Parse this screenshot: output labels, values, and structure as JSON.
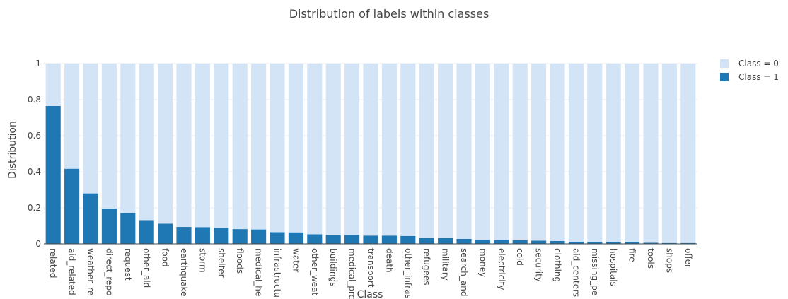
{
  "chart_data": {
    "type": "bar",
    "stacked": true,
    "title": "Distribution of labels within classes",
    "xlabel": "Class",
    "ylabel": "Distribution",
    "ylim": [
      0,
      1
    ],
    "yticks": [
      0,
      0.2,
      0.4,
      0.6,
      0.8,
      1
    ],
    "ytick_labels": [
      "0",
      "0.2",
      "0.4",
      "0.6",
      "0.8",
      "1"
    ],
    "grid": true,
    "legend_position": "top-right",
    "categories": [
      "related",
      "aid_related",
      "weather_related",
      "direct_report",
      "request",
      "other_aid",
      "food",
      "earthquake",
      "storm",
      "shelter",
      "floods",
      "medical_help",
      "infrastructure_related",
      "water",
      "other_weather",
      "buildings",
      "medical_products",
      "transport",
      "death",
      "other_infrastructure",
      "refugees",
      "military",
      "search_and_rescue",
      "money",
      "electricity",
      "cold",
      "security",
      "clothing",
      "aid_centers",
      "missing_people",
      "hospitals",
      "fire",
      "tools",
      "shops",
      "offer"
    ],
    "category_display": [
      "related",
      "aid_related",
      "weather_re",
      "direct_repo",
      "request",
      "other_aid",
      "food",
      "earthquake",
      "storm",
      "shelter",
      "floods",
      "medical_he",
      "infrastructu",
      "water",
      "other_weat",
      "buildings",
      "medical_prc",
      "transport",
      "death",
      "other_infras",
      "refugees",
      "military",
      "search_and",
      "money",
      "electricity",
      "cold",
      "security",
      "clothing",
      "aid_centers",
      "missing_pe",
      "hospitals",
      "fire",
      "tools",
      "shops",
      "offer"
    ],
    "series": [
      {
        "name": "Class = 1",
        "color": "#1f77b4",
        "values": [
          0.765,
          0.417,
          0.28,
          0.195,
          0.171,
          0.132,
          0.112,
          0.094,
          0.093,
          0.089,
          0.082,
          0.08,
          0.065,
          0.064,
          0.053,
          0.051,
          0.05,
          0.046,
          0.046,
          0.044,
          0.033,
          0.033,
          0.028,
          0.023,
          0.02,
          0.02,
          0.018,
          0.016,
          0.012,
          0.011,
          0.011,
          0.011,
          0.006,
          0.005,
          0.005
        ]
      },
      {
        "name": "Class = 0",
        "color": "#d4e4f7",
        "values": [
          0.235,
          0.583,
          0.72,
          0.805,
          0.829,
          0.868,
          0.888,
          0.906,
          0.907,
          0.911,
          0.918,
          0.92,
          0.935,
          0.936,
          0.947,
          0.949,
          0.95,
          0.954,
          0.954,
          0.956,
          0.967,
          0.967,
          0.972,
          0.977,
          0.98,
          0.98,
          0.982,
          0.984,
          0.988,
          0.989,
          0.989,
          0.989,
          0.994,
          0.995,
          0.995
        ]
      }
    ],
    "legend": [
      "Class = 0",
      "Class = 1"
    ]
  }
}
